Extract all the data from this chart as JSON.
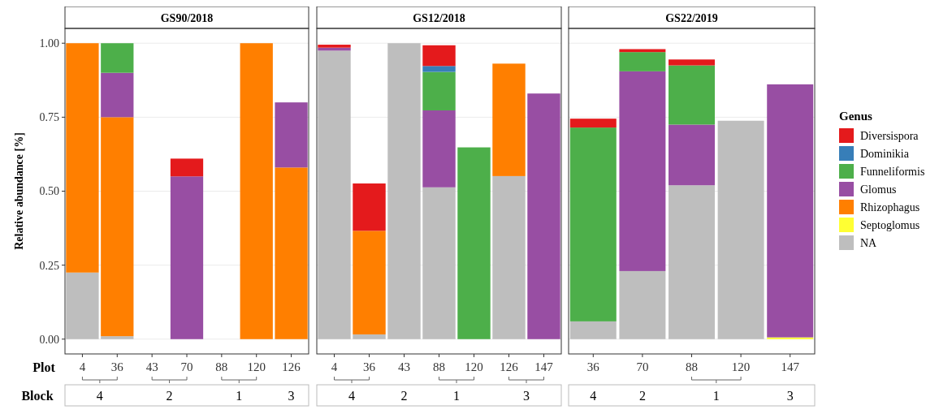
{
  "chart_data": [
    {
      "type": "bar",
      "title": "GS90/2018",
      "xlabel": "Plot",
      "ylabel": "Relative abundance [%]",
      "categories": [
        "4",
        "36",
        "43",
        "70",
        "88",
        "120",
        "126"
      ],
      "stacked": true,
      "ylim": [
        -0.05,
        1.05
      ],
      "yticks": [
        {
          "value": 0,
          "label": "0.00"
        },
        {
          "value": 0.25,
          "label": "0.25"
        },
        {
          "value": 0.5,
          "label": "0.50"
        },
        {
          "value": 0.75,
          "label": "0.75"
        },
        {
          "value": 1,
          "label": "1.00"
        }
      ],
      "grid": "y",
      "annotations": [
        "Block",
        "4",
        "2",
        "1",
        "3"
      ],
      "series": [
        {
          "color": "#bebebe",
          "values": [
            0.225,
            0.01,
            null,
            null,
            null,
            null,
            null
          ]
        },
        {
          "color": "#ff7f00",
          "values": [
            0.775,
            0.74,
            null,
            null,
            null,
            1.0,
            0.58
          ]
        },
        {
          "color": "#984ea3",
          "values": [
            null,
            0.15,
            null,
            0.55,
            null,
            null,
            0.22
          ]
        },
        {
          "color": "#4daf4a",
          "values": [
            null,
            0.1,
            null,
            null,
            null,
            null,
            null
          ]
        },
        {
          "color": "#e41a1c",
          "values": [
            null,
            null,
            null,
            0.06,
            null,
            null,
            null
          ]
        }
      ]
    },
    {
      "type": "bar",
      "title": "GS12/2018",
      "categories": [
        "4",
        "36",
        "43",
        "88",
        "120",
        "126",
        "147"
      ],
      "stacked": true,
      "ylim": [
        -0.05,
        1.05
      ],
      "yticks": [
        {
          "value": 0,
          "label": null
        },
        {
          "value": 0.25,
          "label": null
        },
        {
          "value": 0.5,
          "label": null
        },
        {
          "value": 0.75,
          "label": null
        },
        {
          "value": 1,
          "label": null
        }
      ],
      "grid": "y",
      "tick_labels": "x",
      "annotations": [
        "4",
        "2",
        "1",
        "3"
      ],
      "series": [
        {
          "color": "#bebebe",
          "values": [
            0.975,
            0.016,
            1.0,
            0.513,
            null,
            0.551,
            null
          ]
        },
        {
          "color": "#ff7f00",
          "values": [
            null,
            0.35,
            null,
            null,
            null,
            0.38,
            null
          ]
        },
        {
          "color": "#984ea3",
          "values": [
            0.01,
            null,
            null,
            0.26,
            null,
            null,
            0.83
          ]
        },
        {
          "color": "#4daf4a",
          "values": [
            null,
            null,
            null,
            0.13,
            0.648,
            null,
            null
          ]
        },
        {
          "color": "#377eb8",
          "values": [
            null,
            null,
            null,
            0.02,
            null,
            null,
            null
          ]
        },
        {
          "color": "#e41a1c",
          "values": [
            0.01,
            0.16,
            null,
            0.07,
            null,
            null,
            null
          ]
        }
      ]
    },
    {
      "type": "bar",
      "title": "GS22/2019",
      "categories": [
        "36",
        "70",
        "88",
        "120",
        "147"
      ],
      "stacked": true,
      "ylim": [
        -0.05,
        1.05
      ],
      "yticks": [
        {
          "value": 0,
          "label": null
        },
        {
          "value": 0.25,
          "label": null
        },
        {
          "value": 0.5,
          "label": null
        },
        {
          "value": 0.75,
          "label": null
        },
        {
          "value": 1,
          "label": null
        }
      ],
      "grid": "y",
      "tick_labels": "x",
      "annotations": [
        "4",
        "2",
        "1",
        "3"
      ],
      "legend": "right",
      "legend_title": "Genus",
      "series": [
        {
          "name": "NA",
          "color": "#bebebe",
          "values": [
            0.06,
            0.23,
            0.52,
            0.738,
            null
          ]
        },
        {
          "name": "Septoglomus",
          "color": "#ffff33",
          "values": [
            null,
            null,
            null,
            null,
            0.006
          ]
        },
        {
          "name": "Rhizophagus",
          "color": "#ff7f00",
          "values": [
            null,
            null,
            null,
            null,
            null
          ]
        },
        {
          "name": "Glomus",
          "color": "#984ea3",
          "values": [
            null,
            0.675,
            0.205,
            null,
            0.855
          ]
        },
        {
          "name": "Funneliformis",
          "color": "#4daf4a",
          "values": [
            0.655,
            0.065,
            0.2,
            null,
            null
          ]
        },
        {
          "name": "Dominikia",
          "color": "#377eb8",
          "values": [
            null,
            null,
            null,
            null,
            null
          ]
        },
        {
          "name": "Diversispora",
          "color": "#e41a1c",
          "values": [
            0.03,
            0.01,
            0.02,
            null,
            null
          ]
        }
      ]
    }
  ]
}
